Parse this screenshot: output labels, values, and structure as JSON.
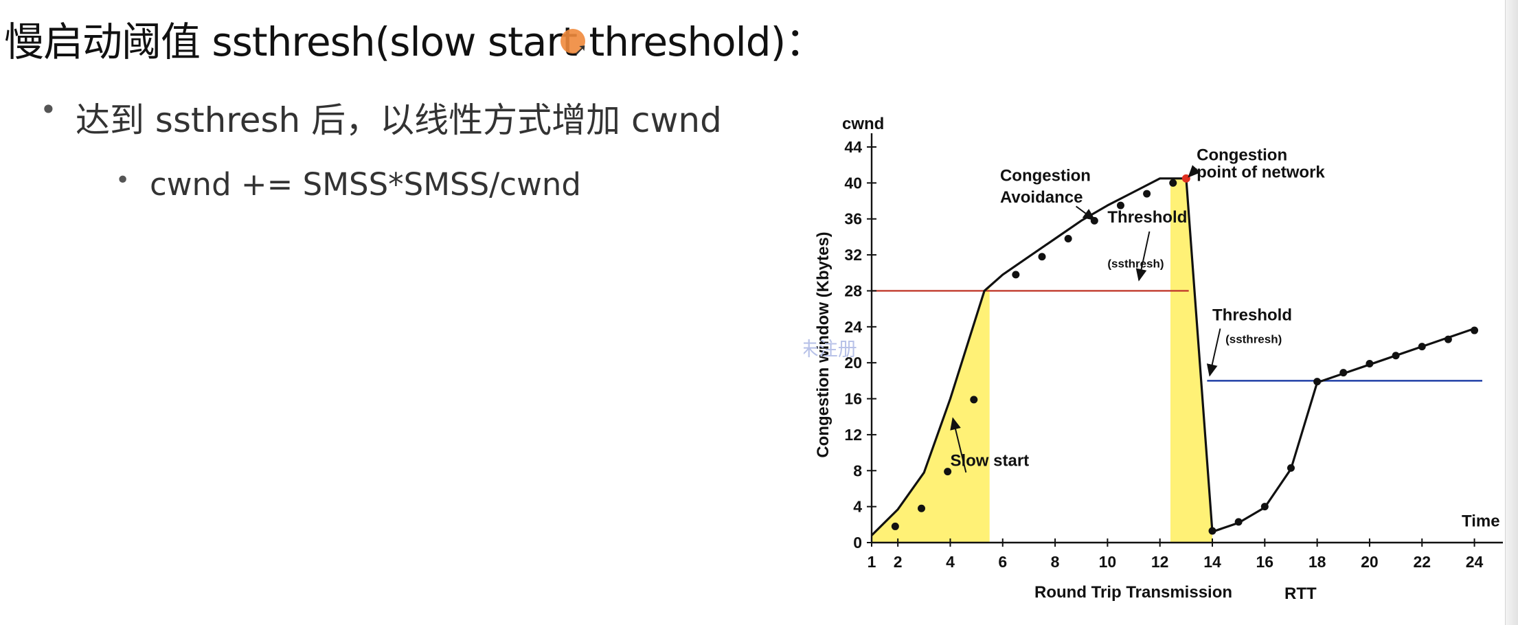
{
  "slide": {
    "title": "慢启动阈值 ssthresh(slow start threshold)：",
    "bullets": [
      {
        "text": "达到 ssthresh 后，以线性方式增加 cwnd"
      },
      {
        "text": "cwnd += SMSS*SMSS/cwnd"
      }
    ],
    "bullet_glyph": "•"
  },
  "chart_data": {
    "type": "line",
    "ylabel": "Congestion window (Kbytes)",
    "y_top_label": "cwnd",
    "xlabel": "Round Trip Transmission",
    "x_unit_label": "RTT",
    "x_end_label": "Time",
    "ylim": [
      0,
      44
    ],
    "yticks": [
      0,
      4,
      8,
      12,
      16,
      20,
      24,
      28,
      32,
      36,
      40,
      44
    ],
    "xlim": [
      1,
      24.3
    ],
    "xticks": [
      1,
      2,
      4,
      6,
      8,
      10,
      12,
      14,
      16,
      18,
      20,
      22,
      24
    ],
    "grid": false,
    "points": [
      [
        1,
        0.8
      ],
      [
        2,
        3.7
      ],
      [
        3,
        7.8
      ],
      [
        4,
        16
      ],
      [
        5.3,
        28
      ],
      [
        6,
        29.8
      ],
      [
        7,
        31.8
      ],
      [
        8,
        33.8
      ],
      [
        9,
        35.8
      ],
      [
        10,
        37.5
      ],
      [
        11,
        39
      ],
      [
        12,
        40.5
      ],
      [
        13,
        40.5
      ],
      [
        14,
        1.2
      ],
      [
        15,
        2.2
      ],
      [
        16,
        3.9
      ],
      [
        17,
        8.2
      ],
      [
        18,
        17.8
      ],
      [
        19,
        18.8
      ],
      [
        20,
        19.8
      ],
      [
        21,
        20.8
      ],
      [
        22,
        21.8
      ],
      [
        23,
        22.8
      ],
      [
        24,
        23.8
      ]
    ],
    "point_markers": [
      [
        1.9,
        1.8
      ],
      [
        2.9,
        3.8
      ],
      [
        3.9,
        7.9
      ],
      [
        4.9,
        15.9
      ],
      [
        6.5,
        29.8
      ],
      [
        7.5,
        31.8
      ],
      [
        8.5,
        33.8
      ],
      [
        9.5,
        35.8
      ],
      [
        10.5,
        37.5
      ],
      [
        11.5,
        38.8
      ],
      [
        12.5,
        40
      ],
      [
        14,
        1.3
      ],
      [
        15,
        2.3
      ],
      [
        16,
        4
      ],
      [
        17,
        8.3
      ],
      [
        18,
        17.9
      ],
      [
        19,
        18.9
      ],
      [
        20,
        19.9
      ],
      [
        21,
        20.8
      ],
      [
        22,
        21.8
      ],
      [
        23,
        22.6
      ],
      [
        24,
        23.6
      ]
    ],
    "threshold_lines": [
      {
        "y": 28,
        "x_from": 1,
        "x_to": 13.1,
        "color": "#c0392b"
      },
      {
        "y": 18,
        "x_from": 13.8,
        "x_to": 24.3,
        "color": "#1f3fa6"
      }
    ],
    "slow_start_regions": [
      [
        1,
        5.5
      ],
      [
        12.4,
        14
      ]
    ],
    "peak_point": [
      13,
      40.5
    ],
    "annotations": [
      {
        "text": "Congestion",
        "x": 5.9,
        "y": 40.2
      },
      {
        "text": "Avoidance",
        "x": 5.9,
        "y": 37.8
      },
      {
        "text": "Threshold",
        "x": 10,
        "y": 35.6
      },
      {
        "text": "(ssthresh)",
        "x": 10,
        "y": 30.6
      },
      {
        "text": "Congestion",
        "x": 13.4,
        "y": 42.5
      },
      {
        "text": "point of network",
        "x": 13.4,
        "y": 40.6
      },
      {
        "text": "Slow start",
        "x": 4,
        "y": 8.5
      },
      {
        "text": "Threshold",
        "x": 14,
        "y": 24.7
      },
      {
        "text": "(ssthresh)",
        "x": 14.5,
        "y": 22.2
      }
    ],
    "colors": {
      "line": "#111111",
      "fill": "#fff176",
      "peak": "#e03020",
      "watermark": "#b8c2e8"
    },
    "watermark": "未注册"
  }
}
